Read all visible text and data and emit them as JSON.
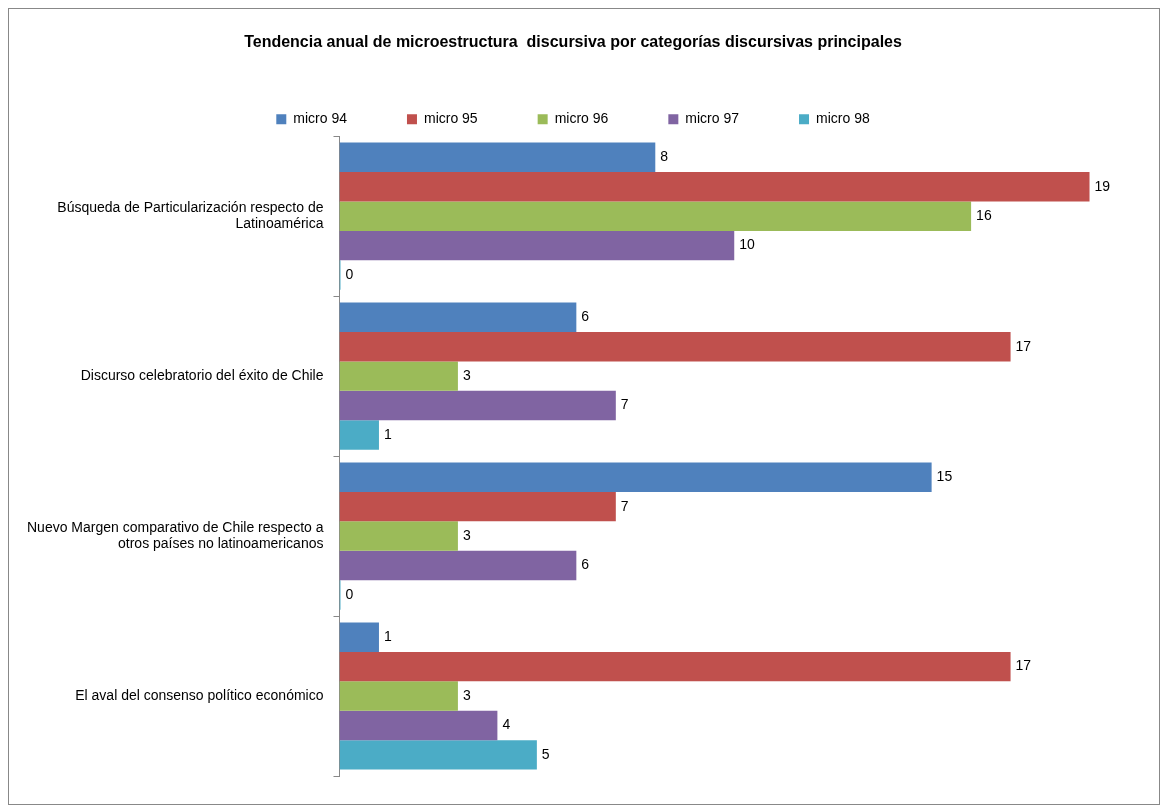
{
  "chart_data": {
    "type": "bar",
    "orientation": "horizontal",
    "title": "Tendencia anual de microestructura  discursiva por categorías discursivas principales",
    "categories": [
      "Búsqueda de Particularización respecto de Latinoamérica",
      "Discurso celebratorio del éxito de Chile",
      "Nuevo Margen comparativo de Chile respecto a otros países no latinoamericanos",
      "El aval del consenso político económico"
    ],
    "series": [
      {
        "name": "micro 94",
        "color": "#4f81bd",
        "values": [
          8,
          6,
          15,
          1
        ]
      },
      {
        "name": "micro 95",
        "color": "#c0504d",
        "values": [
          19,
          17,
          7,
          17
        ]
      },
      {
        "name": "micro 96",
        "color": "#9bbb59",
        "values": [
          16,
          3,
          3,
          3
        ]
      },
      {
        "name": "micro 97",
        "color": "#8064a2",
        "values": [
          10,
          7,
          6,
          4
        ]
      },
      {
        "name": "micro 98",
        "color": "#4bacc6",
        "values": [
          0,
          1,
          0,
          5
        ]
      }
    ],
    "data_labels": true,
    "legend": "top",
    "grid": false,
    "tick_labels": "y"
  }
}
